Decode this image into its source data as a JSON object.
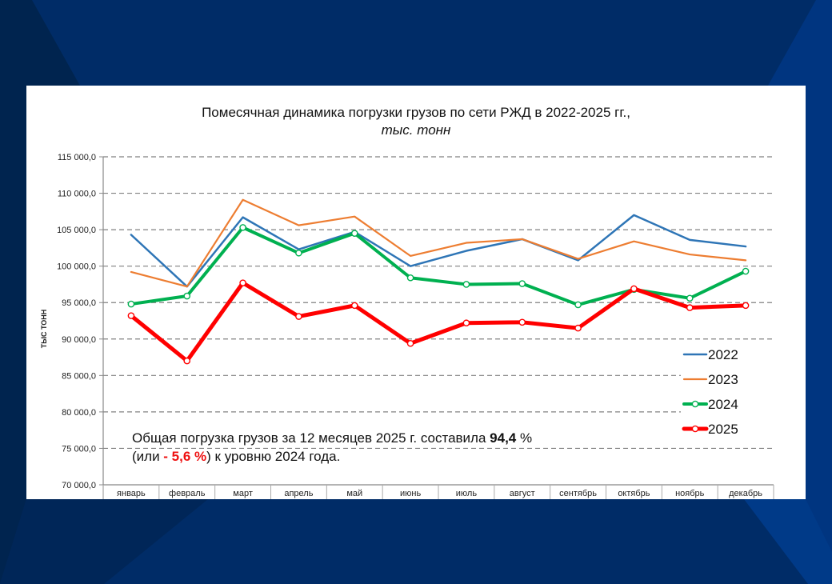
{
  "chart_data": {
    "type": "line",
    "title": "Помесячная динамика погрузки грузов по сети РЖД в 2022-2025 гг.,",
    "subtitle": "тыс. тонн",
    "xlabel": "",
    "ylabel": "тыс тонн",
    "ylim": [
      70000,
      115000
    ],
    "yticks": [
      70000,
      75000,
      80000,
      85000,
      90000,
      95000,
      100000,
      105000,
      110000,
      115000
    ],
    "ytick_labels": [
      "70 000,0",
      "75 000,0",
      "80 000,0",
      "85 000,0",
      "90 000,0",
      "95 000,0",
      "100 000,0",
      "105 000,0",
      "110 000,0",
      "115 000,0"
    ],
    "grid": true,
    "legend_position": "right",
    "categories": [
      "январь",
      "февраль",
      "март",
      "апрель",
      "май",
      "июнь",
      "июль",
      "август",
      "сентябрь",
      "октябрь",
      "ноябрь",
      "декабрь"
    ],
    "series": [
      {
        "name": "2022",
        "color": "#2e75b6",
        "markers": false,
        "values": [
          104300,
          97200,
          106700,
          102300,
          104700,
          100000,
          102100,
          103700,
          100800,
          107000,
          103600,
          102700
        ]
      },
      {
        "name": "2023",
        "color": "#ed7d31",
        "markers": false,
        "values": [
          99200,
          97200,
          109100,
          105600,
          106800,
          101400,
          103200,
          103700,
          101000,
          103400,
          101600,
          100800
        ]
      },
      {
        "name": "2024",
        "color": "#00b050",
        "markers": true,
        "values": [
          94800,
          95900,
          105300,
          101800,
          104500,
          98400,
          97500,
          97600,
          94700,
          96800,
          95600,
          99300
        ]
      },
      {
        "name": "2025",
        "color": "#ff0000",
        "markers": true,
        "values": [
          93200,
          87000,
          97700,
          93100,
          94600,
          89400,
          92200,
          92300,
          91500,
          96900,
          94300,
          94600
        ]
      }
    ],
    "annotation": {
      "line1_prefix": "Общая погрузка грузов за 12 месяцев 2025 г. составила ",
      "line1_bold": "94,4",
      "line1_suffix": " %",
      "line2_prefix": "(или ",
      "line2_red": "- 5,6 %",
      "line2_suffix": ") к уровню 2024 года."
    }
  },
  "colors": {
    "background": "#002c67",
    "panel": "#ffffff",
    "grid": "#808080"
  }
}
